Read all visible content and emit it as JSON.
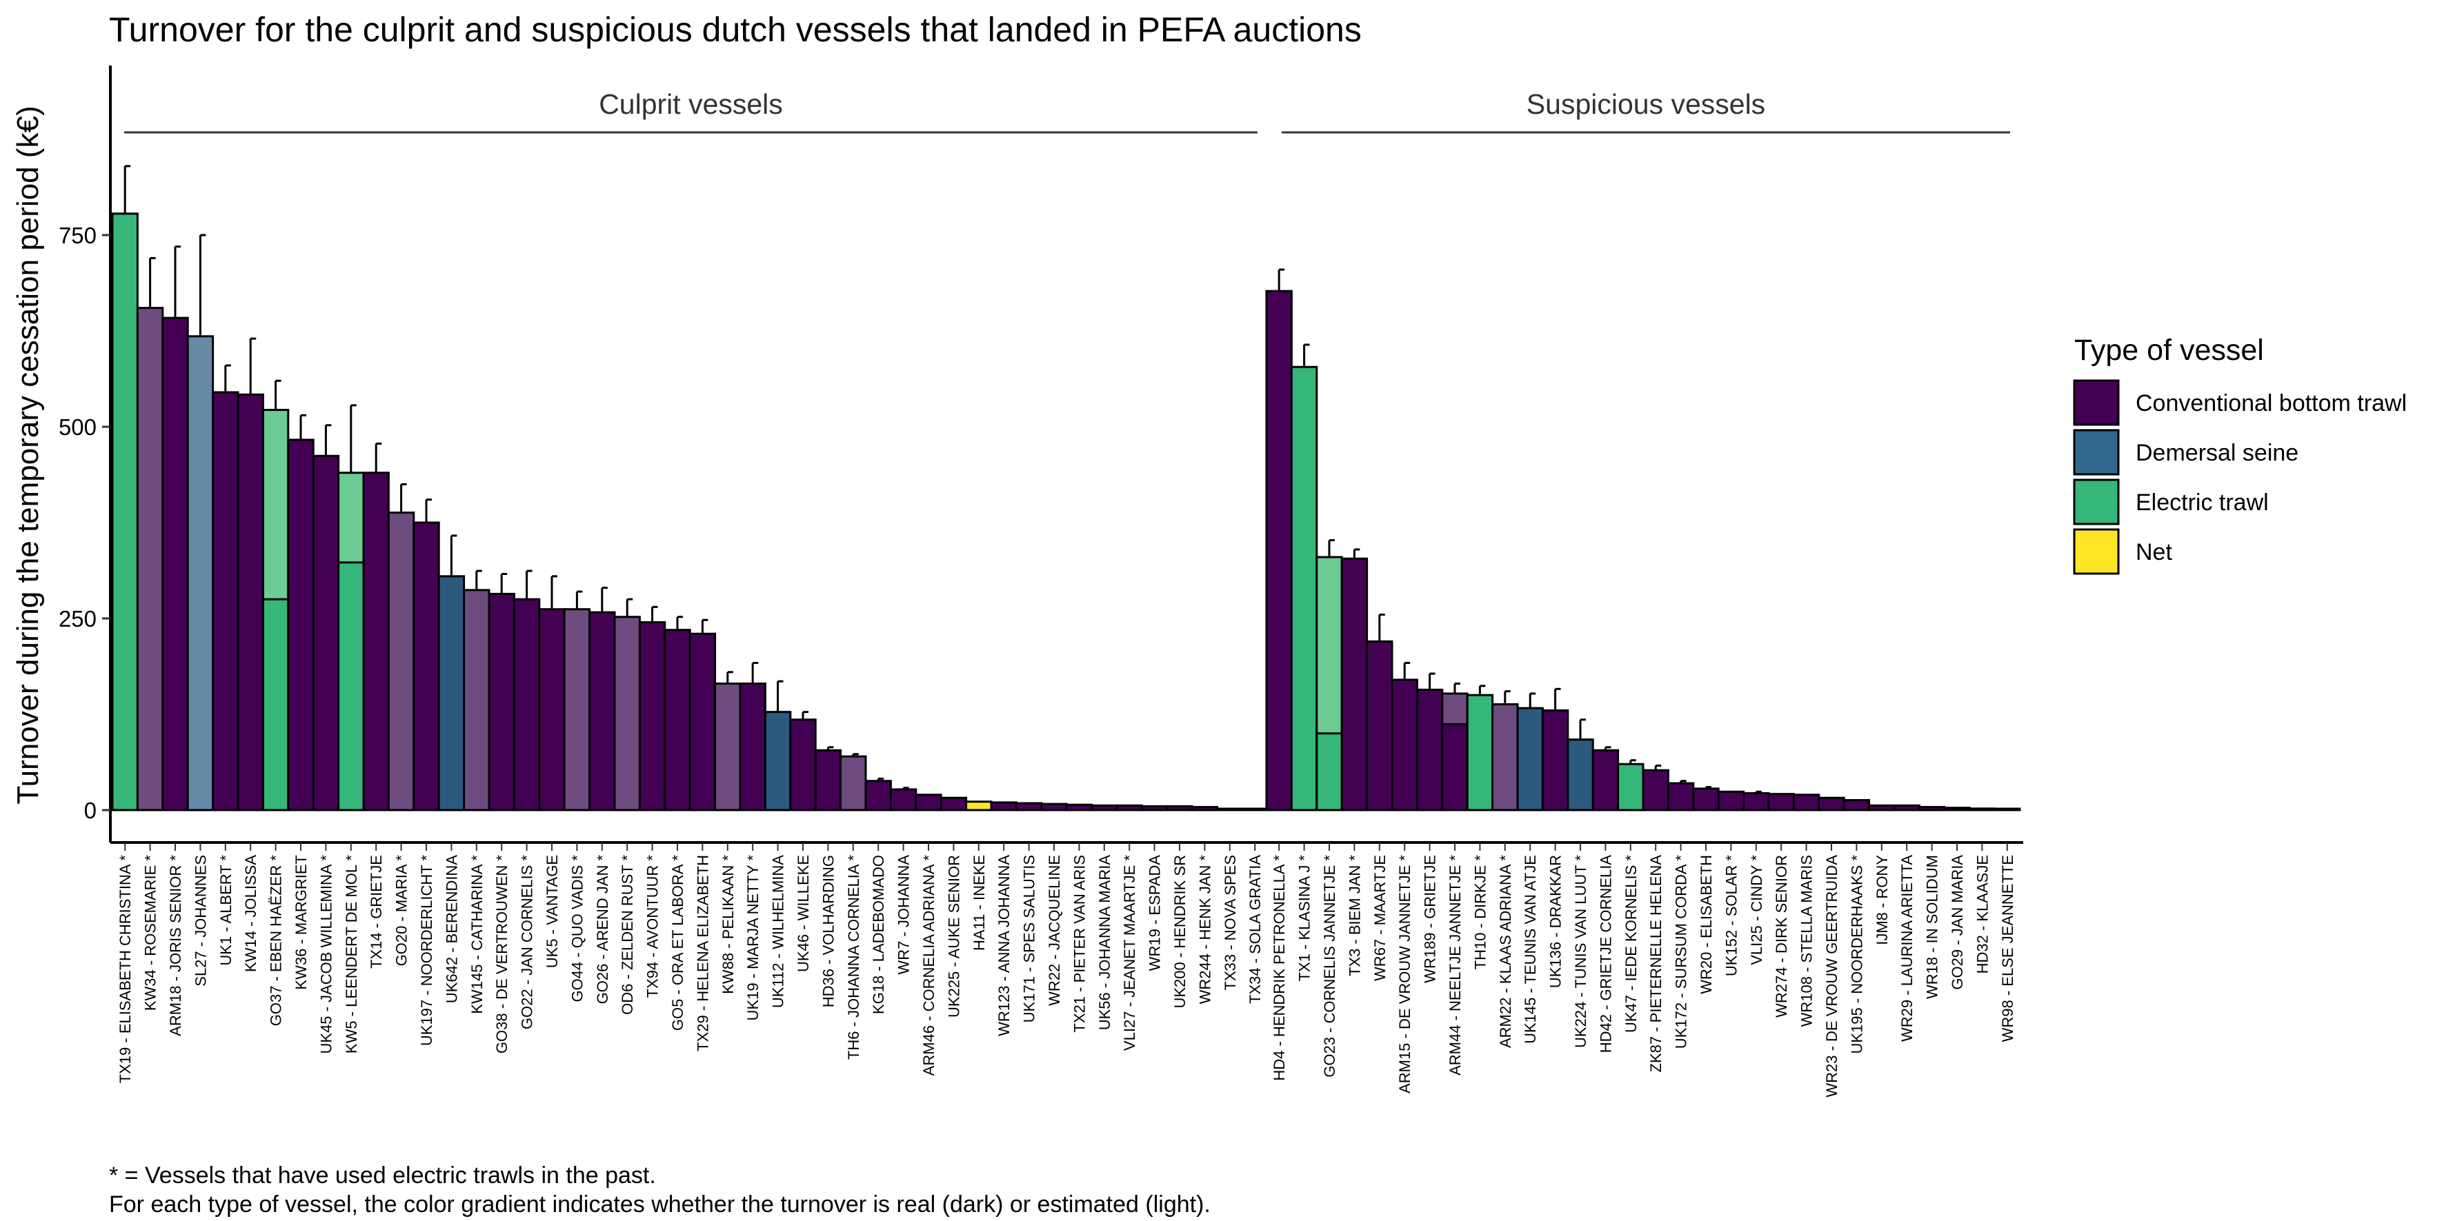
{
  "chart_data": {
    "type": "bar",
    "title": "Turnover for the culprit and suspicious dutch vessels that landed in PEFA auctions",
    "ylabel": "Turnover during the temporary cessation period (k€)",
    "xlabel": "",
    "ylim": [
      -50,
      1000
    ],
    "yticks": [
      0,
      250,
      500,
      750
    ],
    "grid": false,
    "legend_placement": "right",
    "legend": {
      "title": "Type of vessel",
      "items": [
        {
          "label": "Conventional bottom trawl",
          "color": "#440154"
        },
        {
          "label": "Demersal seine",
          "color": "#31688e"
        },
        {
          "label": "Electric trawl",
          "color": "#35b779"
        },
        {
          "label": "Net",
          "color": "#fde725"
        }
      ]
    },
    "panels": [
      {
        "label": "Culprit vessels",
        "bars": [
          {
            "label": "TX19  -  ELISABETH CHRISTINA  *",
            "value": 778,
            "err": 840,
            "type": "Electric trawl"
          },
          {
            "label": "KW34  -  ROSEMARIE  *",
            "value": 655,
            "err": 720,
            "type": "Conventional bottom trawl",
            "estimated": true
          },
          {
            "label": "ARM18  -  JORIS SENIOR  *",
            "value": 642,
            "err": 735,
            "type": "Conventional bottom trawl"
          },
          {
            "label": "SL27  -  JOHANNES",
            "value": 618,
            "err": 750,
            "type": "Demersal seine",
            "estimated": true
          },
          {
            "label": "UK1  -  ALBERT  *",
            "value": 545,
            "err": 580,
            "type": "Conventional bottom trawl"
          },
          {
            "label": "KW14  -  JOLISSA",
            "value": 542,
            "err": 615,
            "type": "Conventional bottom trawl"
          },
          {
            "label": "GO37  -  EBEN HAËZER  *",
            "value": 522,
            "err": 560,
            "type": "Electric trawl",
            "estimated": true,
            "real_part": 275
          },
          {
            "label": "KW36  -  MARGRIET",
            "value": 483,
            "err": 515,
            "type": "Conventional bottom trawl"
          },
          {
            "label": "UK45  -  JACOB WILLEMINA  *",
            "value": 462,
            "err": 502,
            "type": "Conventional bottom trawl"
          },
          {
            "label": "KW5  -  LEENDERT DE MOL  *",
            "value": 440,
            "err": 528,
            "type": "Electric trawl",
            "estimated": true,
            "real_part": 323
          },
          {
            "label": "TX14  -  GRIETJE",
            "value": 440,
            "err": 478,
            "type": "Conventional bottom trawl"
          },
          {
            "label": "GO20  -  MARIA  *",
            "value": 388,
            "err": 425,
            "type": "Conventional bottom trawl",
            "estimated": true
          },
          {
            "label": "UK197  -  NOORDERLICHT  *",
            "value": 375,
            "err": 405,
            "type": "Conventional bottom trawl"
          },
          {
            "label": "UK642  -  BERENDINA",
            "value": 305,
            "err": 358,
            "type": "Demersal seine"
          },
          {
            "label": "KW145  -  CATHARINA  *",
            "value": 287,
            "err": 312,
            "type": "Conventional bottom trawl",
            "estimated": true
          },
          {
            "label": "GO38  -  DE VERTROUWEN  *",
            "value": 282,
            "err": 308,
            "type": "Conventional bottom trawl"
          },
          {
            "label": "GO22  -  JAN CORNELIS  *",
            "value": 275,
            "err": 312,
            "type": "Conventional bottom trawl"
          },
          {
            "label": "UK5  -  VANTAGE",
            "value": 262,
            "err": 305,
            "type": "Conventional bottom trawl"
          },
          {
            "label": "GO44  -  QUO VADIS  *",
            "value": 262,
            "err": 285,
            "type": "Conventional bottom trawl",
            "estimated": true
          },
          {
            "label": "GO26  -  AREND JAN  *",
            "value": 258,
            "err": 290,
            "type": "Conventional bottom trawl"
          },
          {
            "label": "OD6  -  ZELDEN RUST  *",
            "value": 252,
            "err": 275,
            "type": "Conventional bottom trawl",
            "estimated": true
          },
          {
            "label": "TX94  -  AVONTUUR  *",
            "value": 245,
            "err": 265,
            "type": "Conventional bottom trawl"
          },
          {
            "label": "GO5  -  ORA ET LABORA  *",
            "value": 235,
            "err": 252,
            "type": "Conventional bottom trawl"
          },
          {
            "label": "TX29  -  HELENA ELIZABETH",
            "value": 230,
            "err": 248,
            "type": "Conventional bottom trawl"
          },
          {
            "label": "KW88  -  PELIKAAN  *",
            "value": 165,
            "err": 180,
            "type": "Conventional bottom trawl",
            "estimated": true
          },
          {
            "label": "UK19  -  MARJA NETTY  *",
            "value": 165,
            "err": 192,
            "type": "Conventional bottom trawl"
          },
          {
            "label": "UK112  -  WILHELMINA",
            "value": 128,
            "err": 168,
            "type": "Demersal seine"
          },
          {
            "label": "UK46  -  WILLEKE",
            "value": 118,
            "err": 128,
            "type": "Conventional bottom trawl"
          },
          {
            "label": "HD36  -  VOLHARDING",
            "value": 78,
            "err": 82,
            "type": "Conventional bottom trawl"
          },
          {
            "label": "TH6  -  JOHANNA CORNELIA  *",
            "value": 70,
            "err": 73,
            "type": "Conventional bottom trawl",
            "estimated": true
          },
          {
            "label": "KG18  -  LADEBOMADO",
            "value": 38,
            "err": 41,
            "type": "Conventional bottom trawl"
          },
          {
            "label": "WR7  -  JOHANNA",
            "value": 27,
            "err": 29,
            "type": "Conventional bottom trawl"
          },
          {
            "label": "ARM46  -  CORNELIA ADRIANA  *",
            "value": 20,
            "err": 21,
            "type": "Conventional bottom trawl"
          },
          {
            "label": "UK225  -  AUKE SENIOR",
            "value": 16,
            "err": 17,
            "type": "Conventional bottom trawl"
          },
          {
            "label": "HA11  -  INEKE",
            "value": 11,
            "err": 12,
            "type": "Net",
            "estimated": true
          },
          {
            "label": "WR123  -  ANNA JOHANNA",
            "value": 10,
            "err": 11,
            "type": "Conventional bottom trawl"
          },
          {
            "label": "UK171  -  SPES SALUTIS",
            "value": 9,
            "err": 10,
            "type": "Conventional bottom trawl"
          },
          {
            "label": "WR22  -  JACQUELINE",
            "value": 8,
            "err": 9,
            "type": "Conventional bottom trawl"
          },
          {
            "label": "TX21  -  PIETER VAN ARIS",
            "value": 7,
            "err": 8,
            "type": "Conventional bottom trawl"
          },
          {
            "label": "UK56  -  JOHANNA MARIA",
            "value": 6,
            "err": 7,
            "type": "Conventional bottom trawl"
          },
          {
            "label": "VLI27  -  JEANET MAARTJE  *",
            "value": 6,
            "err": 7,
            "type": "Conventional bottom trawl"
          },
          {
            "label": "WR19  -  ESPADA",
            "value": 5,
            "err": 6,
            "type": "Conventional bottom trawl"
          },
          {
            "label": "UK200  -  HENDRIK SR",
            "value": 5,
            "err": 6,
            "type": "Conventional bottom trawl"
          },
          {
            "label": "WR244  -  HENK JAN  *",
            "value": 4,
            "err": 5,
            "type": "Conventional bottom trawl"
          },
          {
            "label": "TX33  -  NOVA SPES",
            "value": 1,
            "err": 1,
            "type": "Conventional bottom trawl"
          },
          {
            "label": "TX34  -  SOLA GRATIA",
            "value": 1,
            "err": 1,
            "type": "Conventional bottom trawl"
          }
        ]
      },
      {
        "label": "Suspicious vessels",
        "bars": [
          {
            "label": "HD4  -  HENDRIK PETRONELLA  *",
            "value": 677,
            "err": 705,
            "type": "Conventional bottom trawl"
          },
          {
            "label": "TX1  -  KLASINA J  *",
            "value": 578,
            "err": 607,
            "type": "Electric trawl"
          },
          {
            "label": "GO23  -  CORNELIS JANNETJE  *",
            "value": 330,
            "err": 352,
            "type": "Electric trawl",
            "estimated": true,
            "real_part": 100
          },
          {
            "label": "TX3  -  BIEM JAN  *",
            "value": 328,
            "err": 340,
            "type": "Conventional bottom trawl"
          },
          {
            "label": "WR67  -  MAARTJE",
            "value": 220,
            "err": 255,
            "type": "Conventional bottom trawl"
          },
          {
            "label": "ARM15  -  DE VROUW JANNETJE  *",
            "value": 170,
            "err": 192,
            "type": "Conventional bottom trawl"
          },
          {
            "label": "WR189  -  GRIETJE",
            "value": 157,
            "err": 178,
            "type": "Conventional bottom trawl"
          },
          {
            "label": "ARM44  -  NEELTJE JANNETJE  *",
            "value": 152,
            "err": 165,
            "type": "Conventional bottom trawl",
            "estimated": true,
            "real_part": 112
          },
          {
            "label": "TH10  -  DIRKJE  *",
            "value": 150,
            "err": 162,
            "type": "Electric trawl"
          },
          {
            "label": "ARM22  -  KLAAS ADRIANA  *",
            "value": 138,
            "err": 155,
            "type": "Conventional bottom trawl",
            "estimated": true
          },
          {
            "label": "UK145  -  TEUNIS VAN ATJE",
            "value": 133,
            "err": 152,
            "type": "Demersal seine"
          },
          {
            "label": "UK136  -  DRAKKAR",
            "value": 130,
            "err": 158,
            "type": "Conventional bottom trawl"
          },
          {
            "label": "UK224  -  TUNIS VAN LUUT  *",
            "value": 92,
            "err": 118,
            "type": "Demersal seine"
          },
          {
            "label": "HD42  -  GRIETJE CORNELIA",
            "value": 78,
            "err": 82,
            "type": "Conventional bottom trawl"
          },
          {
            "label": "UK47  -  IEDE KORNELIS  *",
            "value": 60,
            "err": 65,
            "type": "Electric trawl"
          },
          {
            "label": "ZK87  -  PIETERNELLE HELENA",
            "value": 52,
            "err": 58,
            "type": "Conventional bottom trawl"
          },
          {
            "label": "UK172  -  SURSUM CORDA  *",
            "value": 35,
            "err": 38,
            "type": "Conventional bottom trawl"
          },
          {
            "label": "WR20  -  ELISABETH",
            "value": 28,
            "err": 30,
            "type": "Conventional bottom trawl"
          },
          {
            "label": "UK152  -  SOLAR  *",
            "value": 24,
            "err": 25,
            "type": "Conventional bottom trawl"
          },
          {
            "label": "VLI25  -  CINDY  *",
            "value": 22,
            "err": 24,
            "type": "Conventional bottom trawl"
          },
          {
            "label": "WR274  -  DIRK SENIOR",
            "value": 21,
            "err": 22,
            "type": "Conventional bottom trawl"
          },
          {
            "label": "WR108  -  STELLA MARIS",
            "value": 20,
            "err": 21,
            "type": "Conventional bottom trawl"
          },
          {
            "label": "WR23  -  DE VROUW GEERTRUIDA",
            "value": 16,
            "err": 17,
            "type": "Conventional bottom trawl"
          },
          {
            "label": "UK195  -  NOORDERHAAKS  *",
            "value": 13,
            "err": 14,
            "type": "Conventional bottom trawl"
          },
          {
            "label": "IJM8  -  RONY",
            "value": 6,
            "err": 7,
            "type": "Conventional bottom trawl"
          },
          {
            "label": "WR29  -  LAURINA ARIETTA",
            "value": 6,
            "err": 7,
            "type": "Conventional bottom trawl"
          },
          {
            "label": "WR18  -  IN SOLIDUM",
            "value": 4,
            "err": 5,
            "type": "Conventional bottom trawl"
          },
          {
            "label": "GO29  -  JAN MARIA",
            "value": 3,
            "err": 3,
            "type": "Conventional bottom trawl"
          },
          {
            "label": "HD32  -  KLAASJE",
            "value": 2,
            "err": 2,
            "type": "Conventional bottom trawl"
          },
          {
            "label": "WR98  -  ELSE JEANNETTE",
            "value": 1,
            "err": 1,
            "type": "Conventional bottom trawl"
          }
        ]
      }
    ],
    "type_colors": {
      "Conventional bottom trawl": {
        "dark": "#440154",
        "light": "#6e4c7f"
      },
      "Demersal seine": {
        "dark": "#2c5a7f",
        "light": "#6789a8"
      },
      "Electric trawl": {
        "dark": "#35b779",
        "light": "#6ccb93"
      },
      "Net": {
        "dark": "#fde725",
        "light": "#fde725"
      }
    }
  },
  "footnotes": [
    "* = Vessels that have used electric trawls in the past.",
    "For each type of vessel, the color gradient indicates whether the turnover is real (dark) or estimated (light)."
  ]
}
